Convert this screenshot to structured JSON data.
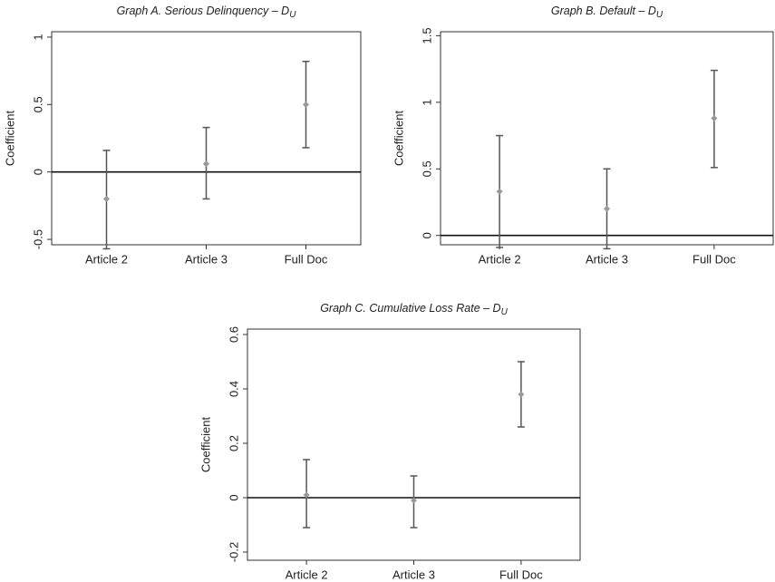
{
  "chart_data": [
    {
      "type": "errorbar",
      "title": "Graph A. Serious Delinquency – D",
      "title_subscript": "U",
      "ylabel": "Coefficient",
      "categories": [
        "Article 2",
        "Article 3",
        "Full Doc"
      ],
      "values": [
        -0.2,
        0.06,
        0.5
      ],
      "lower": [
        -0.57,
        -0.2,
        0.18
      ],
      "upper": [
        0.16,
        0.33,
        0.82
      ],
      "color": "#999999",
      "ylim": [
        -0.54,
        1.04
      ],
      "yticks": [
        -0.5,
        0,
        0.5,
        1
      ]
    },
    {
      "type": "errorbar",
      "title": "Graph B. Default – D",
      "title_subscript": "U",
      "ylabel": "Coefficient",
      "categories": [
        "Article 2",
        "Article 3",
        "Full Doc"
      ],
      "values": [
        0.33,
        0.2,
        0.88
      ],
      "lower": [
        -0.09,
        -0.1,
        0.51
      ],
      "upper": [
        0.75,
        0.5,
        1.24
      ],
      "color": "#999999",
      "ylim": [
        -0.07,
        1.53
      ],
      "yticks": [
        0,
        0.5,
        1,
        1.5
      ]
    },
    {
      "type": "errorbar",
      "title": "Graph C. Cumulative Loss Rate – D",
      "title_subscript": "U",
      "ylabel": "Coefficient",
      "categories": [
        "Article 2",
        "Article 3",
        "Full Doc"
      ],
      "values": [
        0.01,
        -0.01,
        0.38
      ],
      "lower": [
        -0.11,
        -0.11,
        0.26
      ],
      "upper": [
        0.14,
        0.08,
        0.5
      ],
      "color": "#999999",
      "ylim": [
        -0.23,
        0.62
      ],
      "yticks": [
        -0.2,
        0,
        0.2,
        0.4,
        0.6
      ]
    }
  ]
}
